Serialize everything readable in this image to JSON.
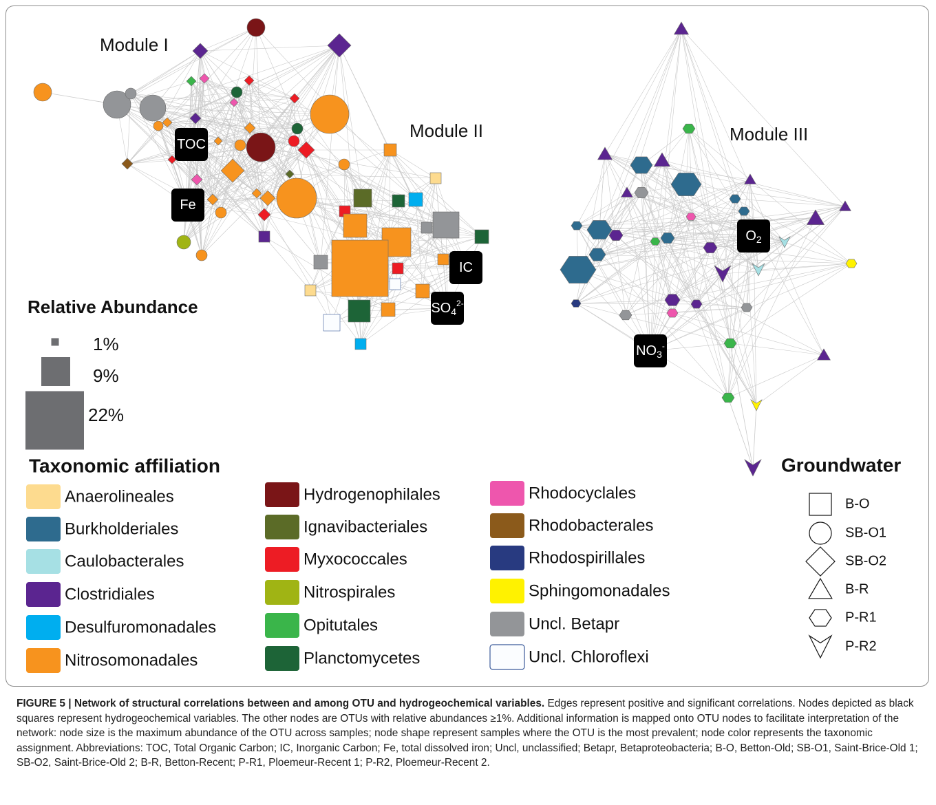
{
  "modules": [
    "Module I",
    "Module II",
    "Module III"
  ],
  "variables": [
    {
      "base": "TOC"
    },
    {
      "base": "Fe"
    },
    {
      "base": "IC"
    },
    {
      "base": "SO",
      "sub": "4",
      "sup": "2-"
    },
    {
      "base": "O",
      "sub": "2"
    },
    {
      "base": "NO",
      "sub": "3",
      "sup": "-"
    }
  ],
  "relative_abundance": {
    "title": "Relative Abundance",
    "items": [
      "1%",
      "9%",
      "22%"
    ]
  },
  "taxonomic_affiliation": {
    "title": "Taxonomic affiliation",
    "items": [
      {
        "name": "Anaerolineales",
        "color": "#fddb8f"
      },
      {
        "name": "Burkholderiales",
        "color": "#2e6b8e"
      },
      {
        "name": "Caulobacterales",
        "color": "#a6e0e4"
      },
      {
        "name": "Clostridiales",
        "color": "#5b2590"
      },
      {
        "name": "Desulfuromonadales",
        "color": "#00aeef"
      },
      {
        "name": "Nitrosomonadales",
        "color": "#f7931e"
      },
      {
        "name": "Hydrogenophilales",
        "color": "#7a1517"
      },
      {
        "name": "Ignavibacteriales",
        "color": "#5b6b27"
      },
      {
        "name": "Myxococcales",
        "color": "#ed1c24"
      },
      {
        "name": "Nitrospirales",
        "color": "#a0b414"
      },
      {
        "name": "Opitutales",
        "color": "#3ab54a"
      },
      {
        "name": "Planctomycetes",
        "color": "#1d6437"
      },
      {
        "name": "Rhodocyclales",
        "color": "#ee56ad"
      },
      {
        "name": "Rhodobacterales",
        "color": "#8b5a1b"
      },
      {
        "name": "Rhodospirillales",
        "color": "#283a80"
      },
      {
        "name": "Sphingomonadales",
        "color": "#fff200"
      },
      {
        "name": "Uncl. Betapr",
        "color": "#939598"
      },
      {
        "name": "Uncl. Chloroflexi",
        "color": "#fbfdff"
      }
    ]
  },
  "groundwater": {
    "title": "Groundwater",
    "items": [
      "B-O",
      "SB-O1",
      "SB-O2",
      "B-R",
      "P-R1",
      "P-R2"
    ]
  },
  "caption": {
    "label": "FIGURE 5 | Network of structural correlations between and among OTU and hydrogeochemical variables.",
    "text": "Edges represent positive and significant correlations. Nodes depicted as black squares represent hydrogeochemical variables. The other nodes are OTUs with relative abundances ≥1%. Additional information is mapped onto OTU nodes to facilitate interpretation of the network: node size is the maximum abundance of the OTU across samples; node shape represent samples where the OTU is the most prevalent; node color represents the taxonomic assignment. Abbreviations: TOC, Total Organic Carbon; IC, Inorganic Carbon; Fe, total dissolved iron; Uncl, unclassified; Betapr, Betaproteobacteria; B-O, Betton-Old; SB-O1, Saint-Brice-Old 1; SB-O2, Saint-Brice-Old 2; B-R, Betton-Recent; P-R1, Ploemeur-Recent 1; P-R2, Ploemeur-Recent 2."
  }
}
